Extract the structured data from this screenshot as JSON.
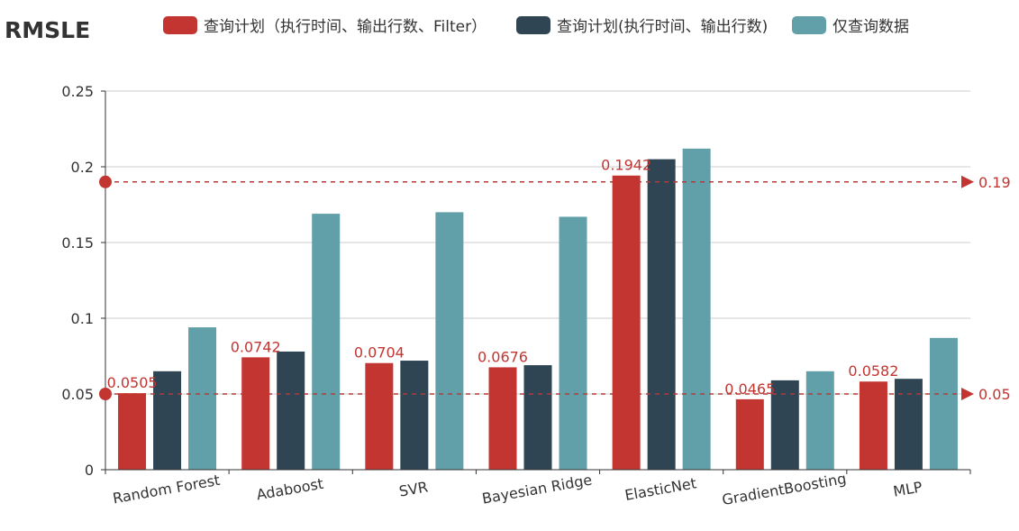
{
  "chart_data": {
    "type": "bar",
    "title": "RMSLE",
    "categories": [
      "Random Forest",
      "Adaboost",
      "SVR",
      "Bayesian Ridge",
      "ElasticNet",
      "GradientBoosting",
      "MLP"
    ],
    "series": [
      {
        "name": "查询计划（执行时间、输出行数、Filter）",
        "color": "#c23531",
        "values": [
          0.0505,
          0.0742,
          0.0704,
          0.0676,
          0.1942,
          0.0465,
          0.0582
        ],
        "data_labels": [
          "0.0505",
          "0.0742",
          "0.0704",
          "0.0676",
          "0.1942",
          "0.0465",
          "0.0582"
        ]
      },
      {
        "name": "查询计划(执行时间、输出行数)",
        "color": "#2f4554",
        "values": [
          0.065,
          0.078,
          0.072,
          0.069,
          0.205,
          0.059,
          0.06
        ]
      },
      {
        "name": "仅查询数据",
        "color": "#61a0a8",
        "values": [
          0.094,
          0.169,
          0.17,
          0.167,
          0.212,
          0.065,
          0.087
        ]
      }
    ],
    "ylim": [
      0,
      0.25
    ],
    "yticks": [
      0,
      0.05,
      0.1,
      0.15,
      0.2,
      0.25
    ],
    "ytick_labels": [
      "0",
      "0.05",
      "0.1",
      "0.15",
      "0.2",
      "0.25"
    ],
    "grid": true,
    "legend_position": "top-center",
    "mark_lines": [
      {
        "value": 0.19,
        "label": "0.19",
        "color": "#c23531"
      },
      {
        "value": 0.05,
        "label": "0.05",
        "color": "#c23531"
      }
    ]
  }
}
